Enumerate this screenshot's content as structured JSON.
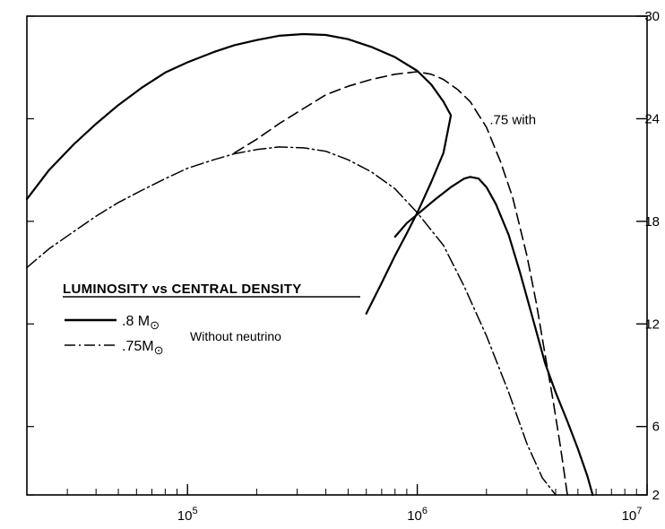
{
  "chart_data": {
    "type": "line",
    "title": "LUMINOSITY vs CENTRAL DENSITY",
    "xlabel": "",
    "ylabel": "",
    "x_scale": "log",
    "xlim": [
      20000,
      10000000
    ],
    "ylim": [
      2,
      30
    ],
    "x_ticks": [
      {
        "value": 100000,
        "base": "10",
        "exp": "5"
      },
      {
        "value": 1000000,
        "base": "10",
        "exp": "6"
      },
      {
        "value": 10000000,
        "base": "10",
        "exp": "7"
      }
    ],
    "y_ticks": [
      {
        "value": 2,
        "label": "2"
      },
      {
        "value": 6,
        "label": "6"
      },
      {
        "value": 12,
        "label": "12"
      },
      {
        "value": 18,
        "label": "18"
      },
      {
        "value": 24,
        "label": "24"
      },
      {
        "value": 30,
        "label": "30"
      }
    ],
    "legend": {
      "entries": [
        {
          "style": "solid",
          "label": ".8 M",
          "sub": "⊙"
        },
        {
          "style": "dashdot",
          "label": ".75M",
          "sub": "⊙"
        }
      ],
      "note": "Without neutrino"
    },
    "annotations": [
      {
        "text": ".75 with",
        "x": 2300000,
        "y": 24
      }
    ],
    "series": [
      {
        "style": "solid",
        "x": [
          20000,
          25000,
          32000,
          40000,
          50000,
          63000,
          80000,
          100000,
          130000,
          160000,
          200000,
          250000,
          320000,
          400000,
          500000,
          630000,
          800000,
          1000000,
          1150000,
          1300000,
          1400000,
          1300000,
          1150000,
          1000000,
          900000,
          800000,
          700000,
          600000
        ],
        "y": [
          19.3,
          21,
          22.5,
          23.7,
          24.8,
          25.8,
          26.7,
          27.3,
          27.9,
          28.3,
          28.6,
          28.85,
          28.95,
          28.9,
          28.65,
          28.2,
          27.6,
          26.8,
          26.0,
          25.0,
          24.2,
          22.0,
          20.3,
          18.5,
          17.3,
          16.0,
          14.4,
          12.6
        ]
      },
      {
        "style": "solid",
        "x": [
          800000,
          900000,
          1000000,
          1200000,
          1400000,
          1600000,
          1700000,
          1850000,
          2000000,
          2200000,
          2500000,
          2800000,
          3200000,
          3600000,
          4000000,
          4500000,
          5000000,
          5500000,
          5800000
        ],
        "y": [
          17.1,
          17.9,
          18.4,
          19.3,
          20.0,
          20.5,
          20.6,
          20.5,
          20.0,
          19.0,
          17.2,
          15.0,
          12.2,
          9.7,
          8.0,
          6.3,
          4.7,
          3.1,
          2.0
        ]
      },
      {
        "style": "dashed",
        "x": [
          160000,
          200000,
          250000,
          320000,
          400000,
          500000,
          630000,
          800000,
          1000000,
          1150000,
          1300000,
          1500000,
          1700000,
          2000000,
          2300000,
          2600000,
          3000000,
          3300000,
          3600000,
          3900000,
          4200000,
          4500000
        ],
        "y": [
          22.0,
          22.8,
          23.7,
          24.6,
          25.4,
          25.9,
          26.3,
          26.6,
          26.75,
          26.6,
          26.3,
          25.7,
          25.0,
          23.5,
          21.5,
          19.4,
          16.0,
          13.2,
          10.2,
          7.5,
          4.8,
          2.0
        ]
      },
      {
        "style": "dashdot",
        "x": [
          20000,
          25000,
          32000,
          40000,
          50000,
          63000,
          80000,
          100000,
          130000,
          160000,
          200000,
          250000,
          320000,
          400000,
          500000,
          630000,
          800000,
          1000000,
          1300000,
          1600000,
          2000000,
          2500000,
          3000000,
          3500000,
          4000000
        ],
        "y": [
          15.3,
          16.4,
          17.4,
          18.3,
          19.1,
          19.8,
          20.5,
          21.1,
          21.6,
          21.95,
          22.2,
          22.35,
          22.3,
          22.1,
          21.6,
          20.9,
          19.9,
          18.5,
          16.6,
          14.2,
          11.3,
          8.0,
          5.0,
          3.0,
          2.0
        ]
      }
    ]
  }
}
